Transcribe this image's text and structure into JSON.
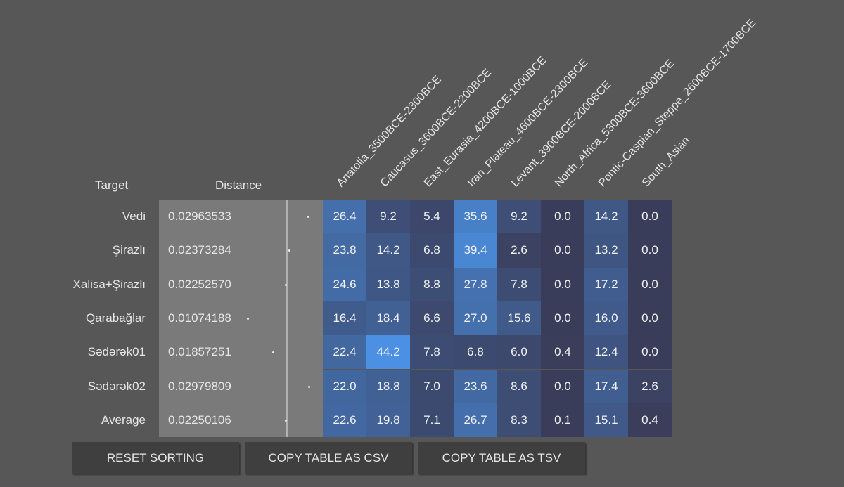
{
  "table": {
    "headers": {
      "target": "Target",
      "distance": "Distance",
      "columns": [
        "Anatolia_3500BCE-2300BCE",
        "Caucasus_3600BCE-2200BCE",
        "East_Eurasia_4200BCE-1000BCE",
        "Iran_Plateau_4600BCE-2300BCE",
        "Levant_3900BCE-2000BCE",
        "North_Africa_5300BCE-3600BCE",
        "Pontic-Caspian_Steppe_2600BCE-1700BCE",
        "South_Asian"
      ]
    },
    "rows": [
      {
        "target": "Vedi",
        "distance": "0.02963533",
        "values": [
          "26.4",
          "9.2",
          "5.4",
          "35.6",
          "9.2",
          "0.0",
          "14.2",
          "0.0"
        ]
      },
      {
        "target": "Şirazlı",
        "distance": "0.02373284",
        "values": [
          "23.8",
          "14.2",
          "6.8",
          "39.4",
          "2.6",
          "0.0",
          "13.2",
          "0.0"
        ]
      },
      {
        "target": "Xalisa+Şirazlı",
        "distance": "0.02252570",
        "values": [
          "24.6",
          "13.8",
          "8.8",
          "27.8",
          "7.8",
          "0.0",
          "17.2",
          "0.0"
        ]
      },
      {
        "target": "Qarabağlar",
        "distance": "0.01074188",
        "values": [
          "16.4",
          "18.4",
          "6.6",
          "27.0",
          "15.6",
          "0.0",
          "16.0",
          "0.0"
        ]
      },
      {
        "target": "Sədərək01",
        "distance": "0.01857251",
        "values": [
          "22.4",
          "44.2",
          "7.8",
          "6.8",
          "6.0",
          "0.4",
          "12.4",
          "0.0"
        ]
      },
      {
        "target": "Sədərək02",
        "distance": "0.02979809",
        "values": [
          "22.0",
          "18.8",
          "7.0",
          "23.6",
          "8.6",
          "0.0",
          "17.4",
          "2.6"
        ]
      },
      {
        "target": "Average",
        "distance": "0.02250106",
        "values": [
          "22.6",
          "19.8",
          "7.1",
          "26.7",
          "8.3",
          "0.1",
          "15.1",
          "0.4"
        ]
      }
    ],
    "color_scale": [
      "#3a3d5a",
      "#4b90e2"
    ]
  },
  "buttons": [
    "RESET SORTING",
    "COPY TABLE AS CSV",
    "COPY TABLE AS TSV"
  ]
}
